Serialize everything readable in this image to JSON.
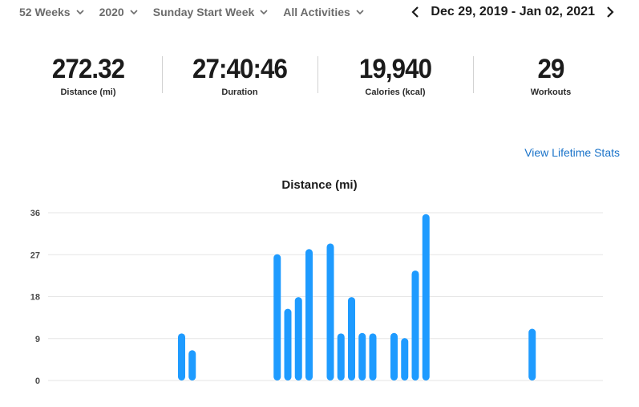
{
  "filters": [
    {
      "label": "52 Weeks"
    },
    {
      "label": "2020"
    },
    {
      "label": "Sunday Start Week"
    },
    {
      "label": "All Activities"
    }
  ],
  "date_range": "Dec 29, 2019 - Jan 02, 2021",
  "stats": [
    {
      "value": "272.32",
      "label": "Distance (mi)"
    },
    {
      "value": "27:40:46",
      "label": "Duration"
    },
    {
      "value": "19,940",
      "label": "Calories (kcal)"
    },
    {
      "value": "29",
      "label": "Workouts"
    }
  ],
  "lifetime_link": "View Lifetime Stats",
  "colors": {
    "bar": "#1e9bff",
    "link": "#1a73c9"
  },
  "chart_data": {
    "type": "bar",
    "title": "Distance (mi)",
    "ylim": [
      0,
      36
    ],
    "yticks": [
      "36",
      "27",
      "18",
      "9",
      "0"
    ],
    "grid": true,
    "categories_count": 52,
    "values": [
      0,
      0,
      0,
      0,
      0,
      0,
      0,
      0,
      0,
      0,
      0,
      0,
      0,
      0,
      0,
      0,
      10.1,
      6.5,
      0,
      0,
      0,
      0,
      0,
      0,
      0,
      27.1,
      15.4,
      17.9,
      28.2,
      0,
      29.4,
      10.1,
      17.9,
      10.2,
      10.1,
      0,
      10.2,
      9.1,
      23.6,
      35.7,
      0,
      0,
      0,
      0,
      0,
      0,
      0,
      0,
      0,
      11.1,
      0,
      0
    ],
    "xlabel": "",
    "ylabel": ""
  }
}
